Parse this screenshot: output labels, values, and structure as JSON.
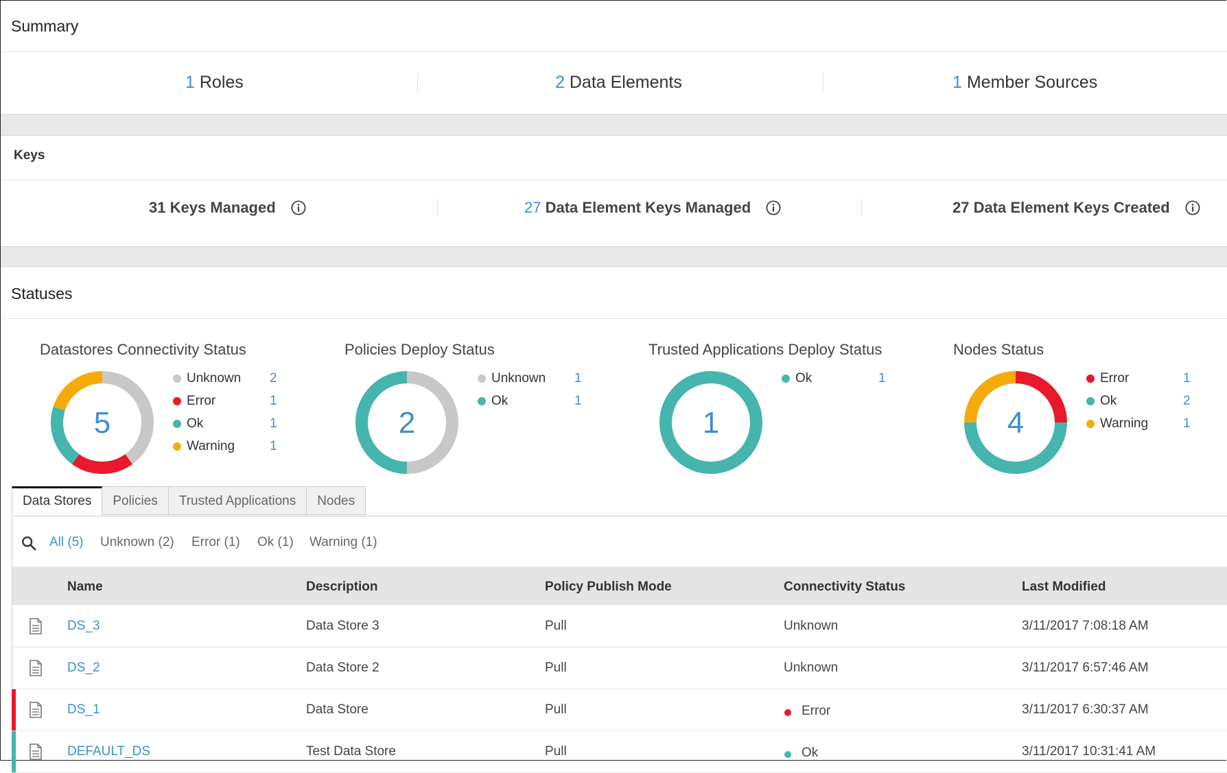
{
  "summary": {
    "title": "Summary",
    "roles": {
      "count": "1",
      "label": "Roles"
    },
    "data_elements": {
      "count": "2",
      "label": "Data Elements"
    },
    "member_sources": {
      "count": "1",
      "label": "Member Sources"
    }
  },
  "keys": {
    "title": "Keys",
    "keys_managed": {
      "count": "31",
      "label": "Keys Managed"
    },
    "de_keys_managed": {
      "count": "27",
      "label": "Data Element Keys Managed"
    },
    "de_keys_created": {
      "count": "27",
      "label": "Data Element Keys Created"
    }
  },
  "statuses": {
    "title": "Statuses",
    "widgets": [
      {
        "title": "Datastores Connectivity Status",
        "total": "5",
        "legend": [
          {
            "label": "Unknown",
            "value": "2",
            "color": "#c8c8c8"
          },
          {
            "label": "Error",
            "value": "1",
            "color": "#e8192c"
          },
          {
            "label": "Ok",
            "value": "1",
            "color": "#45b5ad"
          },
          {
            "label": "Warning",
            "value": "1",
            "color": "#f5ab0a"
          }
        ],
        "segments": [
          {
            "value": 2,
            "color": "#c8c8c8"
          },
          {
            "value": 1,
            "color": "#e8192c"
          },
          {
            "value": 1,
            "color": "#45b5ad"
          },
          {
            "value": 1,
            "color": "#f5ab0a"
          }
        ]
      },
      {
        "title": "Policies Deploy Status",
        "total": "2",
        "legend": [
          {
            "label": "Unknown",
            "value": "1",
            "color": "#c8c8c8"
          },
          {
            "label": "Ok",
            "value": "1",
            "color": "#45b5ad"
          }
        ],
        "segments": [
          {
            "value": 1,
            "color": "#c8c8c8"
          },
          {
            "value": 1,
            "color": "#45b5ad"
          }
        ]
      },
      {
        "title": "Trusted Applications Deploy Status",
        "total": "1",
        "legend": [
          {
            "label": "Ok",
            "value": "1",
            "color": "#45b5ad"
          }
        ],
        "segments": [
          {
            "value": 1,
            "color": "#45b5ad"
          }
        ]
      },
      {
        "title": "Nodes Status",
        "total": "4",
        "legend": [
          {
            "label": "Error",
            "value": "1",
            "color": "#e8192c"
          },
          {
            "label": "Ok",
            "value": "2",
            "color": "#45b5ad"
          },
          {
            "label": "Warning",
            "value": "1",
            "color": "#f5ab0a"
          }
        ],
        "segments": [
          {
            "value": 1,
            "color": "#e8192c"
          },
          {
            "value": 2,
            "color": "#45b5ad"
          },
          {
            "value": 1,
            "color": "#f5ab0a"
          }
        ]
      }
    ]
  },
  "tabs": [
    "Data Stores",
    "Policies",
    "Trusted Applications",
    "Nodes"
  ],
  "filters": [
    "All (5)",
    "Unknown (2)",
    "Error (1)",
    "Ok (1)",
    "Warning (1)"
  ],
  "table": {
    "headers": [
      "Name",
      "Description",
      "Policy Publish Mode",
      "Connectivity Status",
      "Last Modified"
    ],
    "rows": [
      {
        "name": "DS_3",
        "description": "Data Store 3",
        "mode": "Pull",
        "status": "Unknown",
        "modified": "3/11/2017 7:08:18 AM",
        "status_color": ""
      },
      {
        "name": "DS_2",
        "description": "Data Store 2",
        "mode": "Pull",
        "status": "Unknown",
        "modified": "3/11/2017 6:57:46 AM",
        "status_color": ""
      },
      {
        "name": "DS_1",
        "description": "Data Store",
        "mode": "Pull",
        "status": "Error",
        "modified": "3/11/2017 6:30:37 AM",
        "status_color": "#e8192c"
      },
      {
        "name": "DEFAULT_DS",
        "description": "Test Data Store",
        "mode": "Pull",
        "status": "Ok",
        "modified": "3/11/2017 10:31:41 AM",
        "status_color": "#45b5ad"
      }
    ]
  }
}
